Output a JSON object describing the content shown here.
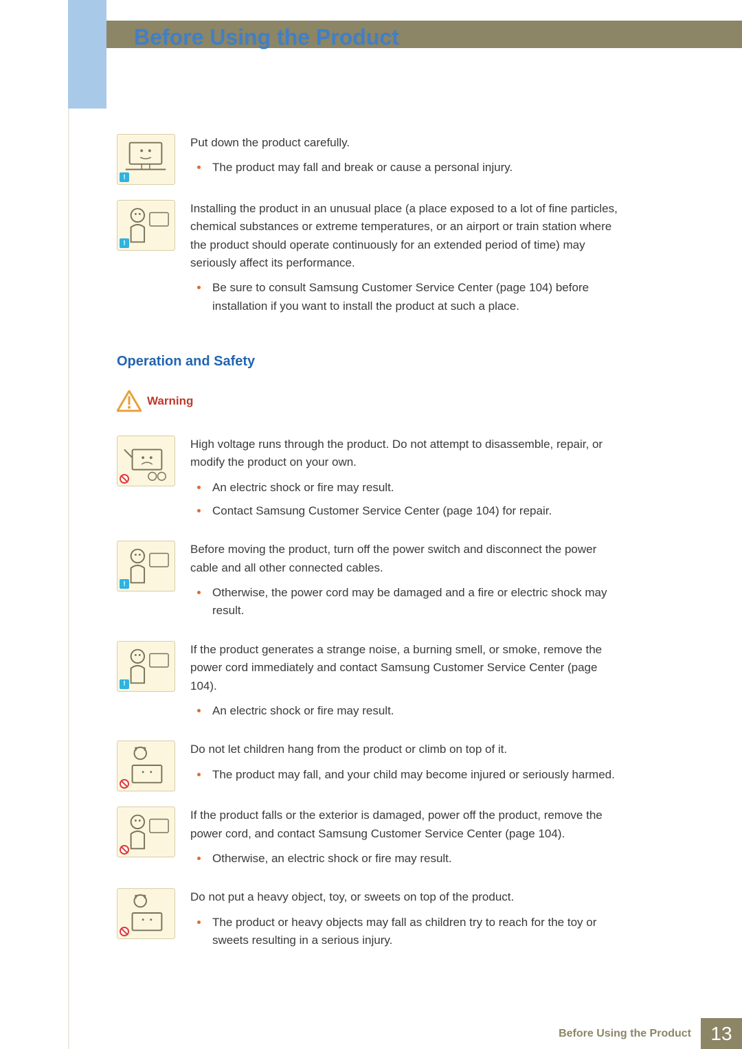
{
  "colors": {
    "title": "#3f7fc8",
    "heading": "#2264b0",
    "warning": "#c0392b",
    "body": "#3a3a3a",
    "bullet": "#dd6b2f",
    "topbar": "#8c8566",
    "leftbar": "#a9c9e8",
    "icon_bg": "#fdf6df",
    "icon_border": "#d7cda6"
  },
  "page_title": "Before Using the Product",
  "items_upper": [
    {
      "badge": "info",
      "text": "Put down the product carefully.",
      "bullets": [
        "The product may fall and break or cause a personal injury."
      ]
    },
    {
      "badge": "info",
      "text": "Installing the product in an unusual place (a place exposed to a lot of fine particles, chemical substances or extreme temperatures, or an airport or train station where the product should operate continuously for an extended period of time) may seriously affect its performance.",
      "bullets": [
        "Be sure to consult Samsung Customer Service Center (page 104) before installation if you want to install the product at such a place."
      ]
    }
  ],
  "section_heading": "Operation and Safety",
  "warning_label": "Warning",
  "items_lower": [
    {
      "badge": "prohibit",
      "text": "High voltage runs through the product. Do not attempt to disassemble, repair, or modify the product on your own.",
      "bullets": [
        "An electric shock or fire may result.",
        "Contact Samsung Customer Service Center (page 104) for repair."
      ]
    },
    {
      "badge": "info",
      "text": "Before moving the product, turn off the power switch and disconnect the power cable and all other connected cables.",
      "bullets": [
        "Otherwise, the power cord may be damaged and a fire or electric shock may result."
      ]
    },
    {
      "badge": "info",
      "text": "If the product generates a strange noise, a burning smell, or smoke, remove the power cord immediately and contact Samsung Customer Service Center (page 104).",
      "bullets": [
        "An electric shock or fire may result."
      ]
    },
    {
      "badge": "prohibit",
      "text": "Do not let children hang from the product or climb on top of it.",
      "bullets": [
        "The product may fall, and your child may become injured or seriously harmed."
      ]
    },
    {
      "badge": "prohibit",
      "text": "If the product falls or the exterior is damaged, power off the product, remove the power cord, and contact Samsung Customer Service Center (page 104).",
      "bullets": [
        "Otherwise, an electric shock or fire may result."
      ]
    },
    {
      "badge": "prohibit",
      "text": "Do not put a heavy object, toy, or sweets on top of the product.",
      "bullets": [
        "The product or heavy objects may fall as children try to reach for the toy or sweets resulting in a serious injury."
      ]
    }
  ],
  "footer_text": "Before Using the Product",
  "page_number": "13"
}
